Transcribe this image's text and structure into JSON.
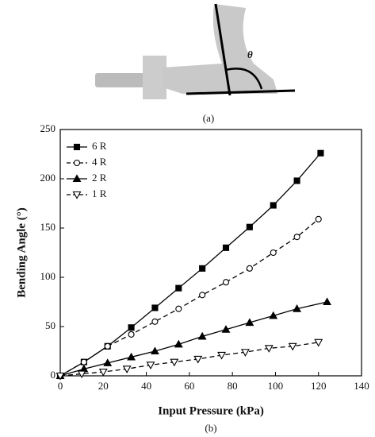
{
  "photo": {
    "symbol": "θ",
    "caption": "(a)"
  },
  "chart_data": {
    "type": "line",
    "caption": "(b)",
    "x_label": "Input Pressure (kPa)",
    "y_label": "Bending Angle (°)",
    "xlim": [
      0,
      140
    ],
    "xticks": [
      0,
      20,
      40,
      60,
      80,
      100,
      120,
      140
    ],
    "ylim": [
      0,
      250
    ],
    "yticks": [
      0,
      50,
      100,
      150,
      200,
      250
    ],
    "legend": "upper-left",
    "series": [
      {
        "name": "6 R",
        "color": "#000000",
        "marker": "square",
        "filled": true,
        "dashed": false,
        "x": [
          0,
          11,
          22,
          33,
          44,
          55,
          66,
          77,
          88,
          99,
          110,
          121
        ],
        "values": [
          0,
          14,
          30,
          49,
          69,
          89,
          109,
          130,
          151,
          173,
          198,
          226
        ]
      },
      {
        "name": "4 R",
        "color": "#000000",
        "marker": "circle",
        "filled": false,
        "dashed": true,
        "x": [
          0,
          11,
          22,
          33,
          44,
          55,
          66,
          77,
          88,
          99,
          110,
          120
        ],
        "values": [
          0,
          14,
          30,
          42,
          55,
          68,
          82,
          95,
          109,
          125,
          141,
          159
        ]
      },
      {
        "name": "2 R",
        "color": "#000000",
        "marker": "triangle",
        "filled": true,
        "dashed": false,
        "x": [
          0,
          11,
          22,
          33,
          44,
          55,
          66,
          77,
          88,
          99,
          110,
          124
        ],
        "values": [
          0,
          7,
          13,
          19,
          25,
          32,
          40,
          47,
          54,
          61,
          68,
          75
        ]
      },
      {
        "name": "1 R",
        "color": "#000000",
        "marker": "down-triangle",
        "filled": false,
        "dashed": true,
        "x": [
          0,
          10,
          20,
          31,
          42,
          53,
          64,
          75,
          86,
          97,
          108,
          120
        ],
        "values": [
          0,
          2,
          4,
          7,
          11,
          14,
          17,
          21,
          24,
          28,
          30,
          34
        ]
      }
    ]
  }
}
